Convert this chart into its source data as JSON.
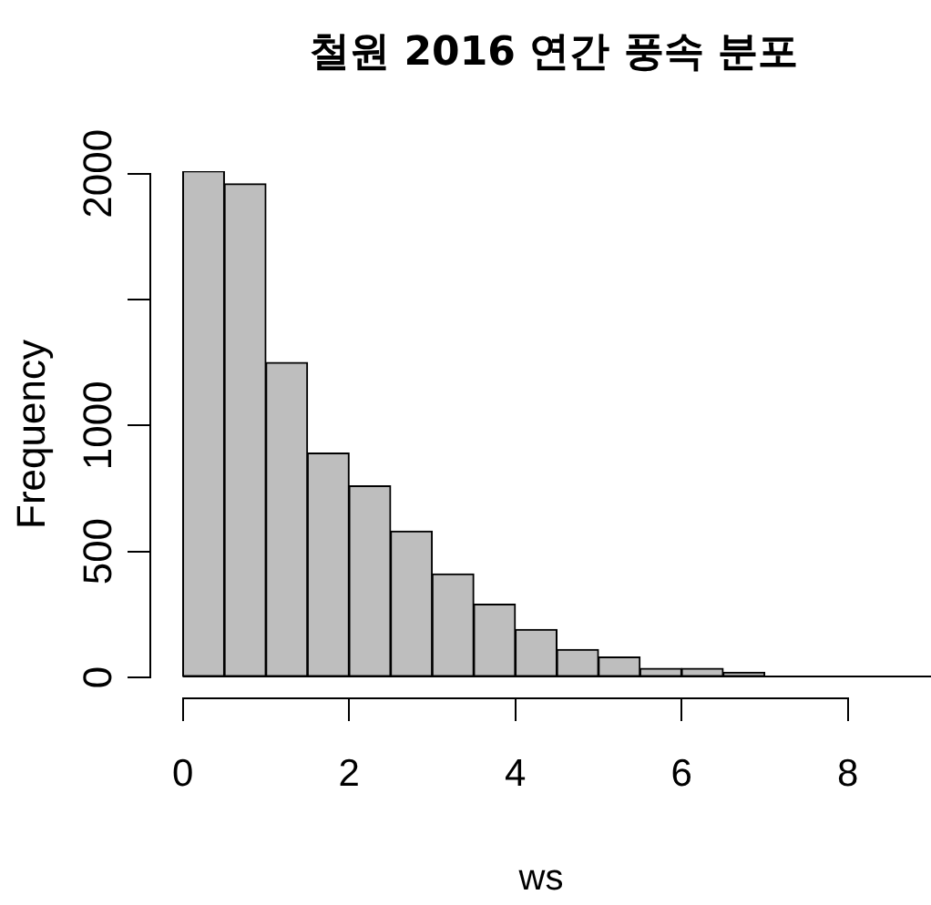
{
  "chart_data": {
    "type": "histogram",
    "title": "철원 2016 연간 풍속 분포",
    "xlabel": "ws",
    "ylabel": "Frequency",
    "bins": [
      0,
      0.5,
      1,
      1.5,
      2,
      2.5,
      3,
      3.5,
      4,
      4.5,
      5,
      5.5,
      6,
      6.5,
      7,
      7.5,
      8,
      8.5,
      9
    ],
    "values": [
      2010,
      1960,
      1250,
      890,
      760,
      580,
      410,
      290,
      190,
      110,
      80,
      35,
      35,
      20,
      0,
      0,
      0,
      0
    ],
    "color": "#bebebe",
    "xlim": [
      -0.38,
      9
    ],
    "ylim": [
      -80,
      2010
    ],
    "xticks": [
      0,
      2,
      4,
      6,
      8
    ],
    "yticks": [
      0,
      500,
      1000,
      {
        "value": 1500,
        "label": null
      },
      2000
    ]
  }
}
